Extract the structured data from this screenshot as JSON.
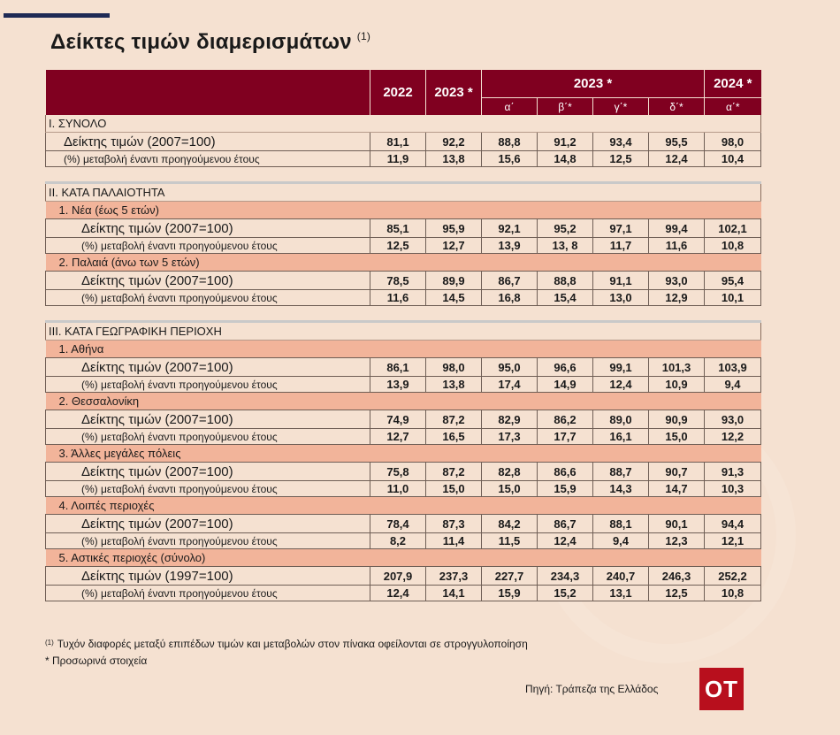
{
  "title": "Δείκτες τιμών διαμερισμάτων",
  "title_note": "(1)",
  "header": {
    "y2022": "2022",
    "y2023": "2023 *",
    "y2023_quarters": "2023 *",
    "y2024": "2024 *",
    "q": [
      "α΄",
      "β΄*",
      "γ΄*",
      "δ΄*",
      "α΄*"
    ]
  },
  "labels": {
    "index_2007": "Δείκτης τιμών (2007=100)",
    "index_1997": "Δείκτης τιμών (1997=100)",
    "pct": "(%) μεταβολή έναντι προηγούμενου έτους"
  },
  "sections": {
    "s1": "Ι. ΣΥΝΟΛΟ",
    "s2": "ΙΙ. ΚΑΤΑ ΠΑΛΑΙΟΤΗΤΑ",
    "s3": "ΙΙΙ. ΚΑΤΑ ΓΕΩΓΡΑΦΙΚΗ ΠΕΡΙΟΧΗ"
  },
  "subs": {
    "new": "1. Νέα (έως 5 ετών)",
    "old": "2. Παλαιά (άνω των 5 ετών)",
    "athens": "1. Αθήνα",
    "thess": "2. Θεσσαλονίκη",
    "other_cities": "3. Άλλες μεγάλες πόλεις",
    "rest": "4. Λοιπές περιοχές",
    "urban": "5. Αστικές περιοχές (σύνολο)"
  },
  "rows": {
    "total_idx": [
      "81,1",
      "92,2",
      "88,8",
      "91,2",
      "93,4",
      "95,5",
      "98,0"
    ],
    "total_pct": [
      "11,9",
      "13,8",
      "15,6",
      "14,8",
      "12,5",
      "12,4",
      "10,4"
    ],
    "new_idx": [
      "85,1",
      "95,9",
      "92,1",
      "95,2",
      "97,1",
      "99,4",
      "102,1"
    ],
    "new_pct": [
      "12,5",
      "12,7",
      "13,9",
      "13, 8",
      "11,7",
      "11,6",
      "10,8"
    ],
    "old_idx": [
      "78,5",
      "89,9",
      "86,7",
      "88,8",
      "91,1",
      "93,0",
      "95,4"
    ],
    "old_pct": [
      "11,6",
      "14,5",
      "16,8",
      "15,4",
      "13,0",
      "12,9",
      "10,1"
    ],
    "athens_idx": [
      "86,1",
      "98,0",
      "95,0",
      "96,6",
      "99,1",
      "101,3",
      "103,9"
    ],
    "athens_pct": [
      "13,9",
      "13,8",
      "17,4",
      "14,9",
      "12,4",
      "10,9",
      "9,4"
    ],
    "thess_idx": [
      "74,9",
      "87,2",
      "82,9",
      "86,2",
      "89,0",
      "90,9",
      "93,0"
    ],
    "thess_pct": [
      "12,7",
      "16,5",
      "17,3",
      "17,7",
      "16,1",
      "15,0",
      "12,2"
    ],
    "other_idx": [
      "75,8",
      "87,2",
      "82,8",
      "86,6",
      "88,7",
      "90,7",
      "91,3"
    ],
    "other_pct": [
      "11,0",
      "15,0",
      "15,0",
      "15,9",
      "14,3",
      "14,7",
      "10,3"
    ],
    "rest_idx": [
      "78,4",
      "87,3",
      "84,2",
      "86,7",
      "88,1",
      "90,1",
      "94,4"
    ],
    "rest_pct": [
      "8,2",
      "11,4",
      "11,5",
      "12,4",
      "9,4",
      "12,3",
      "12,1"
    ],
    "urban_idx": [
      "207,9",
      "237,3",
      "227,7",
      "234,3",
      "240,7",
      "246,3",
      "252,2"
    ],
    "urban_pct": [
      "12,4",
      "14,1",
      "15,9",
      "15,2",
      "13,1",
      "12,5",
      "10,8"
    ]
  },
  "notes": {
    "n1_mark": "(1)",
    "n1": "Τυχόν διαφορές μεταξύ επιπέδων τιμών και μεταβολών στον πίνακα οφείλονται σε στρογγυλοποίηση",
    "n2": "* Προσωρινά στοιχεία"
  },
  "source": "Πηγή: Τράπεζα της Ελλάδος",
  "logo": "ΟΤ"
}
